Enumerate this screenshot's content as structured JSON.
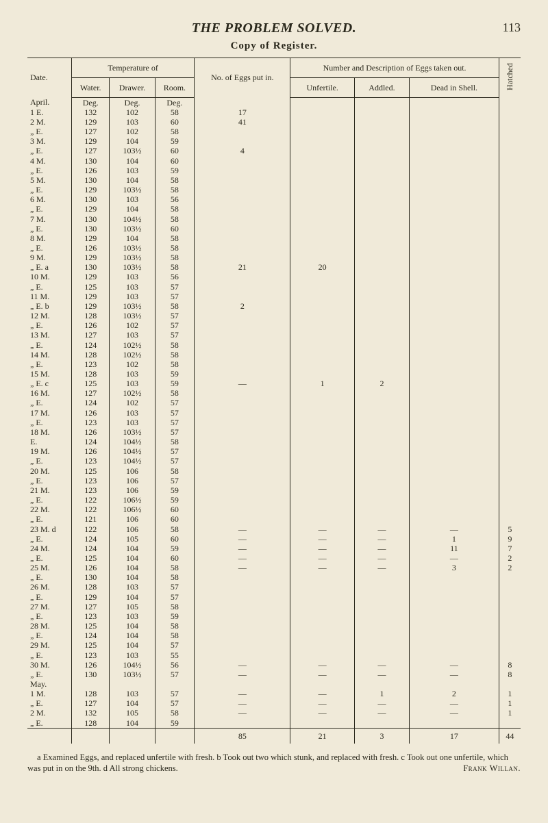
{
  "header": {
    "title": "THE PROBLEM SOLVED.",
    "page_number": "113",
    "subtitle": "Copy of Register."
  },
  "table": {
    "col_groups": {
      "date": "Date.",
      "temperature": "Temperature of",
      "eggs_putin": "No. of Eggs put in.",
      "eggs_taken": "Number and Description of Eggs taken out.",
      "hatched": "Hatched"
    },
    "sub_cols": {
      "water": "Water.",
      "drawer": "Drawer.",
      "room": "Room.",
      "unfertile": "Unfertile.",
      "addled": "Addled.",
      "dead": "Dead in Shell."
    },
    "section_label": "April.",
    "unit_row": {
      "water": "Deg.",
      "drawer": "Deg.",
      "room": "Deg."
    },
    "rows": [
      {
        "d": "1 E.",
        "w": "132",
        "dr": "102",
        "r": "58",
        "p": "17"
      },
      {
        "d": "2 M.",
        "w": "129",
        "dr": "103",
        "r": "60",
        "p": "41"
      },
      {
        "d": "„ E.",
        "w": "127",
        "dr": "102",
        "r": "58"
      },
      {
        "d": "3 M.",
        "w": "129",
        "dr": "104",
        "r": "59"
      },
      {
        "d": "„ E.",
        "w": "127",
        "dr": "103½",
        "r": "60",
        "p": "4"
      },
      {
        "d": "4 M.",
        "w": "130",
        "dr": "104",
        "r": "60"
      },
      {
        "d": "„ E.",
        "w": "126",
        "dr": "103",
        "r": "59"
      },
      {
        "d": "5 M.",
        "w": "130",
        "dr": "104",
        "r": "58"
      },
      {
        "d": "„ E.",
        "w": "129",
        "dr": "103½",
        "r": "58"
      },
      {
        "d": "6 M.",
        "w": "130",
        "dr": "103",
        "r": "56"
      },
      {
        "d": "„ E.",
        "w": "129",
        "dr": "104",
        "r": "58"
      },
      {
        "d": "7 M.",
        "w": "130",
        "dr": "104½",
        "r": "58"
      },
      {
        "d": "„ E.",
        "w": "130",
        "dr": "103½",
        "r": "60"
      },
      {
        "d": "8 M.",
        "w": "129",
        "dr": "104",
        "r": "58"
      },
      {
        "d": "„ E.",
        "w": "126",
        "dr": "103½",
        "r": "58"
      },
      {
        "d": "9 M.",
        "w": "129",
        "dr": "103½",
        "r": "58"
      },
      {
        "d": "„ E. a",
        "w": "130",
        "dr": "103½",
        "r": "58",
        "p": "21",
        "u": "20"
      },
      {
        "d": "10 M.",
        "w": "129",
        "dr": "103",
        "r": "56"
      },
      {
        "d": "„ E.",
        "w": "125",
        "dr": "103",
        "r": "57"
      },
      {
        "d": "11 M.",
        "w": "129",
        "dr": "103",
        "r": "57"
      },
      {
        "d": "„ E. b",
        "w": "129",
        "dr": "103½",
        "r": "58",
        "p": "2"
      },
      {
        "d": "12 M.",
        "w": "128",
        "dr": "103½",
        "r": "57"
      },
      {
        "d": "„ E.",
        "w": "126",
        "dr": "102",
        "r": "57"
      },
      {
        "d": "13 M.",
        "w": "127",
        "dr": "103",
        "r": "57"
      },
      {
        "d": "„ E.",
        "w": "124",
        "dr": "102½",
        "r": "58"
      },
      {
        "d": "14 M.",
        "w": "128",
        "dr": "102½",
        "r": "58"
      },
      {
        "d": "„ E.",
        "w": "123",
        "dr": "102",
        "r": "58"
      },
      {
        "d": "15 M.",
        "w": "128",
        "dr": "103",
        "r": "59"
      },
      {
        "d": "„ E. c",
        "w": "125",
        "dr": "103",
        "r": "59",
        "p": "—",
        "u": "1",
        "a": "2"
      },
      {
        "d": "16 M.",
        "w": "127",
        "dr": "102½",
        "r": "58"
      },
      {
        "d": "„ E.",
        "w": "124",
        "dr": "102",
        "r": "57"
      },
      {
        "d": "17 M.",
        "w": "126",
        "dr": "103",
        "r": "57"
      },
      {
        "d": "„ E.",
        "w": "123",
        "dr": "103",
        "r": "57"
      },
      {
        "d": "18 M.",
        "w": "126",
        "dr": "103½",
        "r": "57"
      },
      {
        "d": "E.",
        "w": "124",
        "dr": "104½",
        "r": "58"
      },
      {
        "d": "19 M.",
        "w": "126",
        "dr": "104½",
        "r": "57"
      },
      {
        "d": "„ E.",
        "w": "123",
        "dr": "104½",
        "r": "57"
      },
      {
        "d": "20 M.",
        "w": "125",
        "dr": "106",
        "r": "58"
      },
      {
        "d": "„ E.",
        "w": "123",
        "dr": "106",
        "r": "57"
      },
      {
        "d": "21 M.",
        "w": "123",
        "dr": "106",
        "r": "59"
      },
      {
        "d": "„ E.",
        "w": "122",
        "dr": "106½",
        "r": "59"
      },
      {
        "d": "22 M.",
        "w": "122",
        "dr": "106½",
        "r": "60"
      },
      {
        "d": "„ E.",
        "w": "121",
        "dr": "106",
        "r": "60"
      },
      {
        "d": "23 M. d",
        "w": "122",
        "dr": "106",
        "r": "58",
        "p": "—",
        "u": "—",
        "a": "—",
        "ds": "—",
        "h": "5"
      },
      {
        "d": "„ E.",
        "w": "124",
        "dr": "105",
        "r": "60",
        "p": "—",
        "u": "—",
        "a": "—",
        "ds": "1",
        "h": "9"
      },
      {
        "d": "24 M.",
        "w": "124",
        "dr": "104",
        "r": "59",
        "p": "—",
        "u": "—",
        "a": "—",
        "ds": "11",
        "h": "7"
      },
      {
        "d": "„ E.",
        "w": "125",
        "dr": "104",
        "r": "60",
        "p": "—",
        "u": "—",
        "a": "—",
        "ds": "—",
        "h": "2"
      },
      {
        "d": "25 M.",
        "w": "126",
        "dr": "104",
        "r": "58",
        "p": "—",
        "u": "—",
        "a": "—",
        "ds": "3",
        "h": "2"
      },
      {
        "d": "„ E.",
        "w": "130",
        "dr": "104",
        "r": "58"
      },
      {
        "d": "26 M.",
        "w": "128",
        "dr": "103",
        "r": "57"
      },
      {
        "d": "„ E.",
        "w": "129",
        "dr": "104",
        "r": "57"
      },
      {
        "d": "27 M.",
        "w": "127",
        "dr": "105",
        "r": "58"
      },
      {
        "d": "„ E.",
        "w": "123",
        "dr": "103",
        "r": "59"
      },
      {
        "d": "28 M.",
        "w": "125",
        "dr": "104",
        "r": "58"
      },
      {
        "d": "„ E.",
        "w": "124",
        "dr": "104",
        "r": "58"
      },
      {
        "d": "29 M.",
        "w": "125",
        "dr": "104",
        "r": "57"
      },
      {
        "d": "„ E.",
        "w": "123",
        "dr": "103",
        "r": "55"
      },
      {
        "d": "30 M.",
        "w": "126",
        "dr": "104½",
        "r": "56",
        "p": "—",
        "u": "—",
        "a": "—",
        "ds": "—",
        "h": "8"
      },
      {
        "d": "„ E.",
        "w": "130",
        "dr": "103½",
        "r": "57",
        "p": "—",
        "u": "—",
        "a": "—",
        "ds": "—",
        "h": "8"
      }
    ],
    "may_label": "May.",
    "may_rows": [
      {
        "d": "1 M.",
        "w": "128",
        "dr": "103",
        "r": "57",
        "p": "—",
        "u": "—",
        "a": "1",
        "ds": "2",
        "h": "1"
      },
      {
        "d": "„ E.",
        "w": "127",
        "dr": "104",
        "r": "57",
        "p": "—",
        "u": "—",
        "a": "—",
        "ds": "—",
        "h": "1"
      },
      {
        "d": "2 M.",
        "w": "132",
        "dr": "105",
        "r": "58",
        "p": "—",
        "u": "—",
        "a": "—",
        "ds": "—",
        "h": "1"
      },
      {
        "d": "„ E.",
        "w": "128",
        "dr": "104",
        "r": "59"
      }
    ],
    "totals": {
      "p": "85",
      "u": "21",
      "a": "3",
      "ds": "17",
      "h": "44"
    }
  },
  "footnote": {
    "text": "a Examined Eggs, and replaced unfertile with fresh.  b Took out two which stunk, and replaced with fresh.  c Took out one unfertile, which was put in on the 9th.  d All strong chickens.",
    "signature": "Frank Willan."
  }
}
